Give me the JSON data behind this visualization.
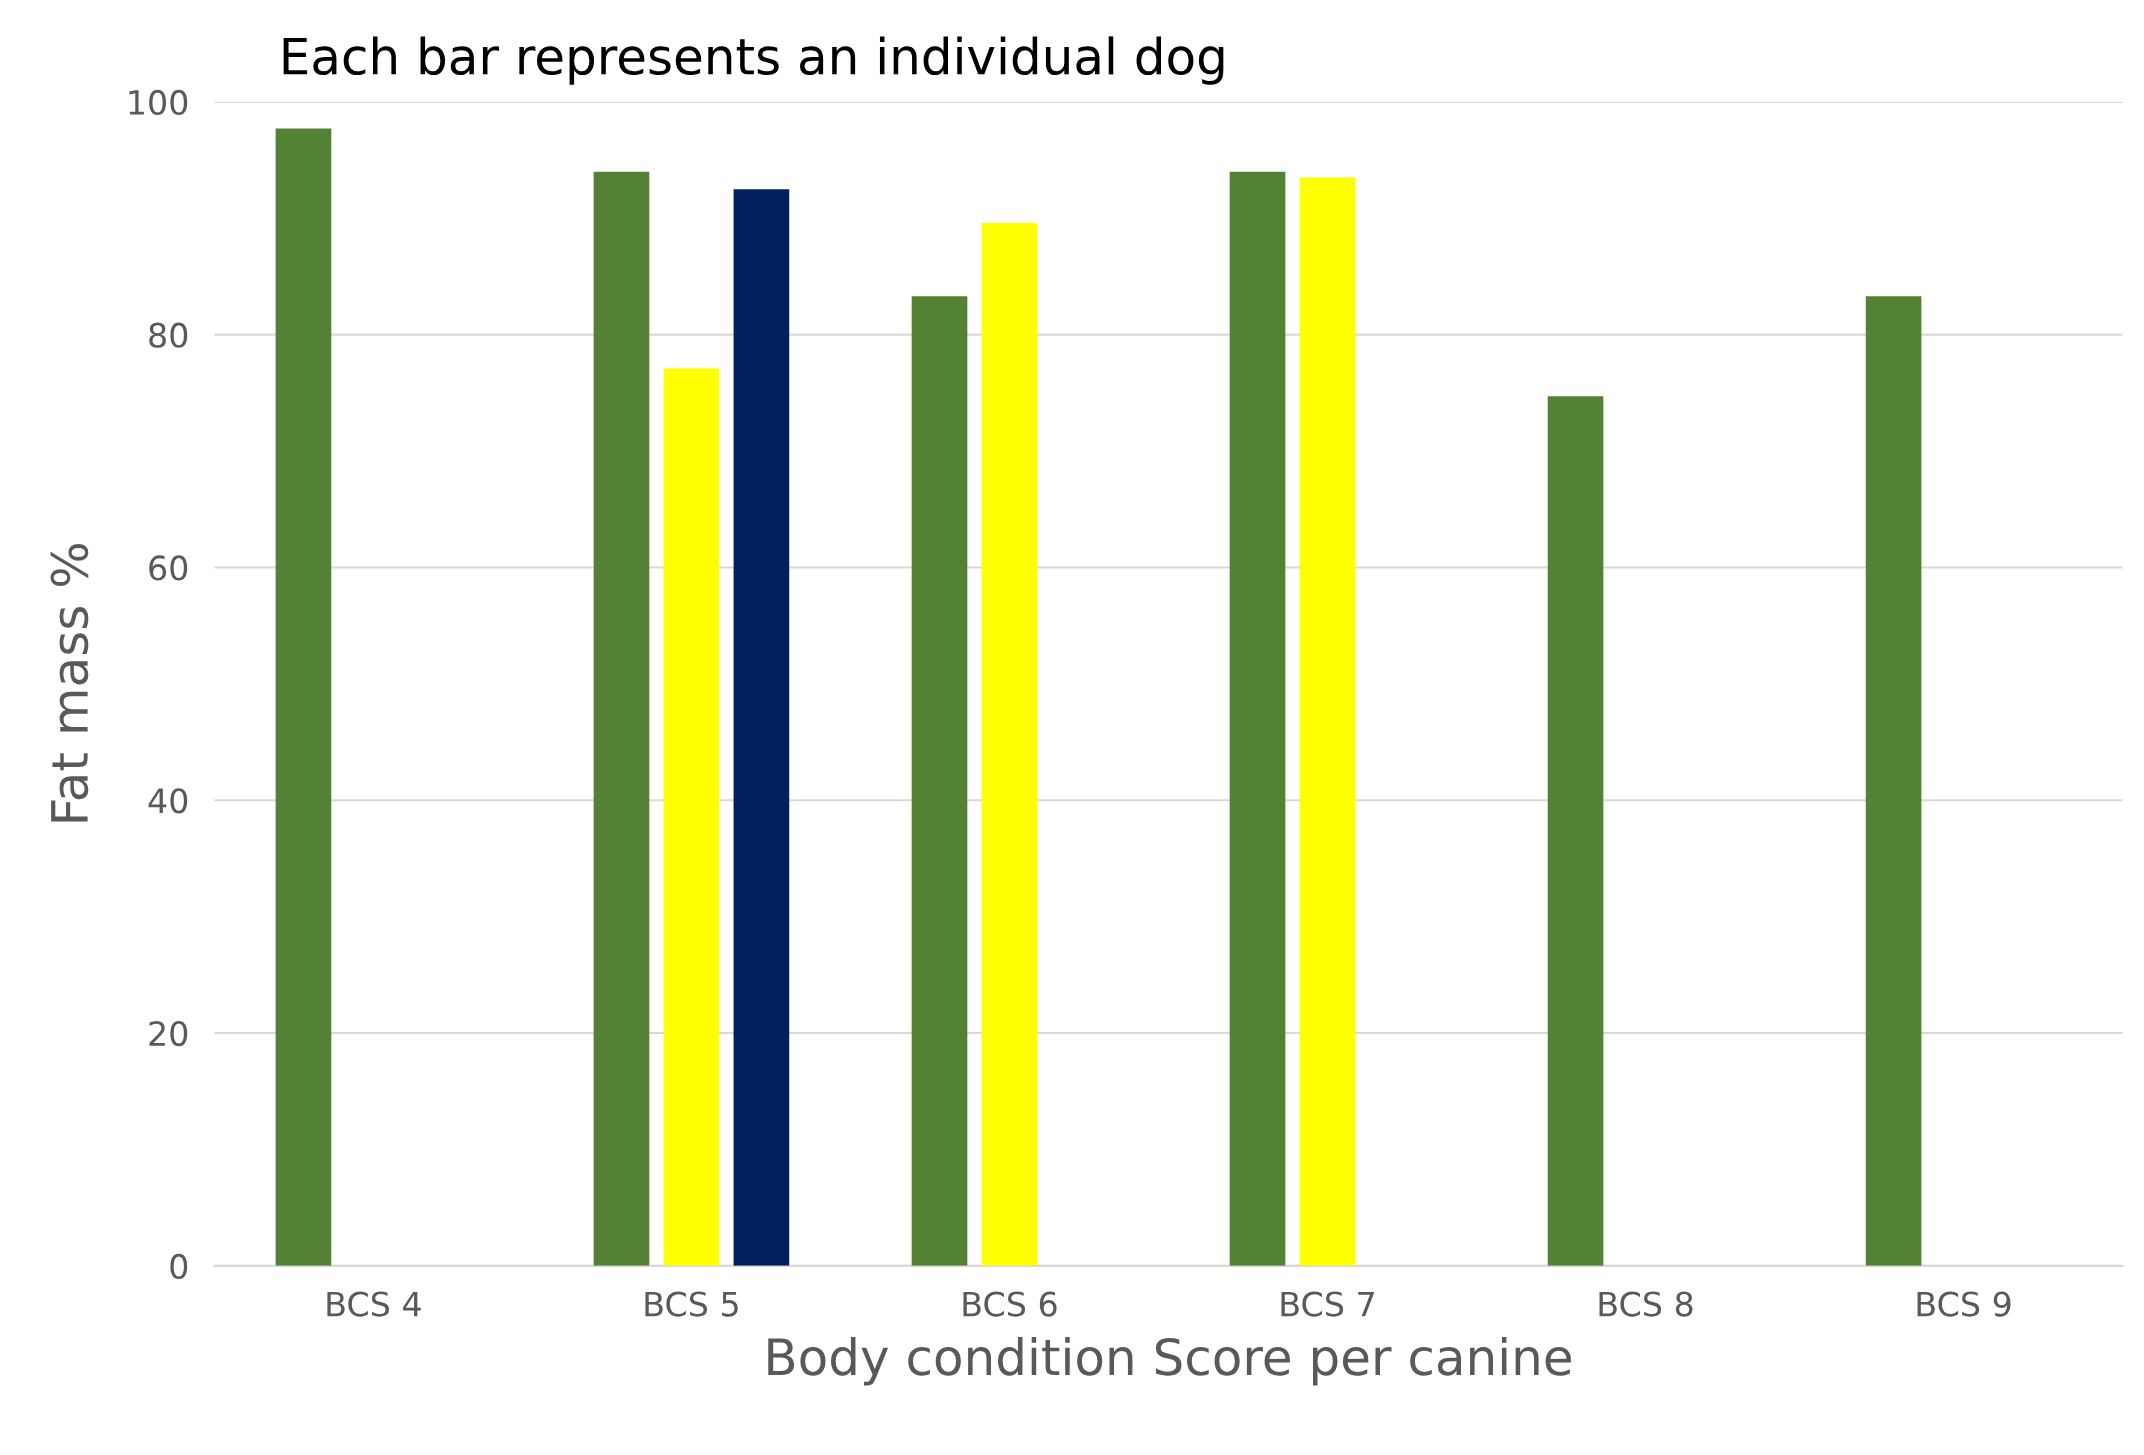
{
  "chart_data": {
    "type": "bar",
    "title": "Each bar represents an individual dog",
    "xlabel": "Body condition Score per canine",
    "ylabel": "Fat mass %",
    "categories": [
      "BCS 4",
      "BCS 5",
      "BCS 6",
      "BCS 7",
      "BCS 8",
      "BCS 9"
    ],
    "series": [
      {
        "color": "#548235",
        "values": [
          97.7,
          94.0,
          83.3,
          94.0,
          74.7,
          83.3
        ]
      },
      {
        "color": "#ffff00",
        "values": [
          null,
          77.1,
          89.6,
          93.5,
          null,
          null
        ]
      },
      {
        "color": "#002060",
        "values": [
          null,
          92.5,
          null,
          null,
          null,
          null
        ]
      }
    ],
    "ylim": [
      0,
      100
    ],
    "yticks": [
      0,
      20,
      40,
      60,
      80,
      100
    ],
    "grid": "y"
  }
}
